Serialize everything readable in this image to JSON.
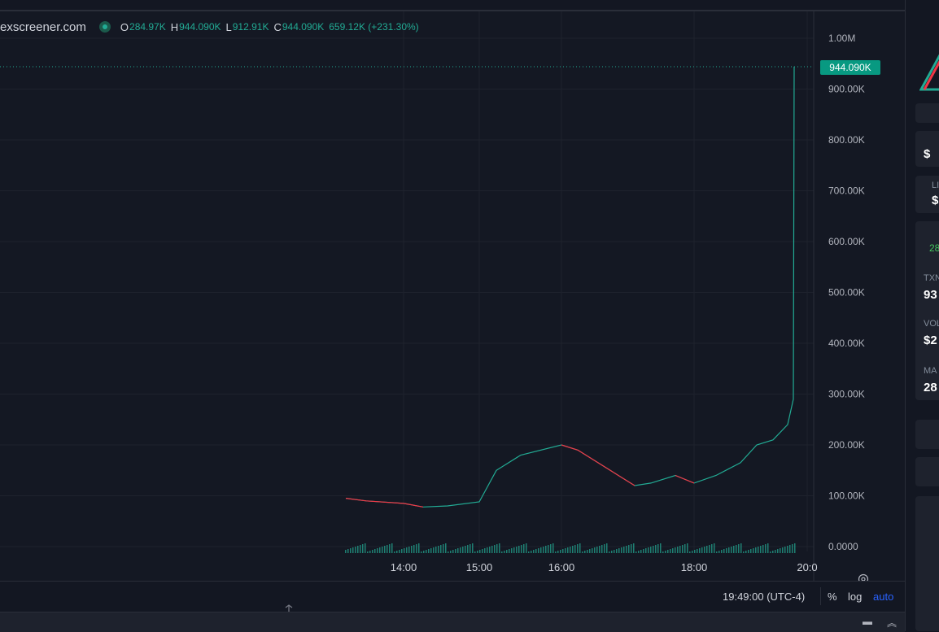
{
  "legend": {
    "site": "exscreener.com",
    "open_key": "O",
    "open": "284.97K",
    "high_key": "H",
    "high": "944.090K",
    "low_key": "L",
    "low": "912.91K",
    "close_key": "C",
    "close": "944.090K",
    "change": "659.12K (+231.30%)"
  },
  "price_axis": {
    "labels": [
      "1.00M",
      "900.00K",
      "800.00K",
      "700.00K",
      "600.00K",
      "500.00K",
      "400.00K",
      "300.00K",
      "200.00K",
      "100.00K",
      "0.0000"
    ],
    "current": "944.090K"
  },
  "time_axis": {
    "labels": [
      "14:00",
      "15:00",
      "16:00",
      "18:00",
      "20:0"
    ]
  },
  "footer": {
    "time": "19:49:00 (UTC-4)",
    "percent": "%",
    "log": "log",
    "auto": "auto"
  },
  "sidebar": {
    "green": "28",
    "label1": "LIQ",
    "val1": "$",
    "txns_label": "TXN",
    "txns_val": "93",
    "vol_label": "VOL",
    "vol_val": "$2",
    "mak_label": "MA",
    "mak_val": "28",
    "top_val": "$"
  },
  "colors": {
    "up": "#22ab94",
    "down": "#f23645",
    "accent": "#2962ff",
    "bg": "#131722"
  },
  "icons": [
    "gear-icon",
    "resize-vertical-icon",
    "minimize-icon",
    "chevron-up-icon"
  ],
  "chart_data": {
    "type": "line",
    "x": [
      "13:20",
      "13:40",
      "14:00",
      "14:20",
      "14:40",
      "15:00",
      "15:20",
      "15:40",
      "16:00",
      "16:20",
      "16:40",
      "17:00",
      "17:20",
      "17:40",
      "18:00",
      "18:20",
      "18:40",
      "19:00",
      "19:20",
      "19:40",
      "19:49",
      "19:50"
    ],
    "y": [
      95000,
      90000,
      85000,
      78000,
      80000,
      88000,
      150000,
      180000,
      200000,
      190000,
      150000,
      120000,
      125000,
      140000,
      125000,
      140000,
      165000,
      200000,
      210000,
      240000,
      290000,
      944090
    ],
    "ylim": [
      0,
      1000000
    ],
    "grid": true
  }
}
